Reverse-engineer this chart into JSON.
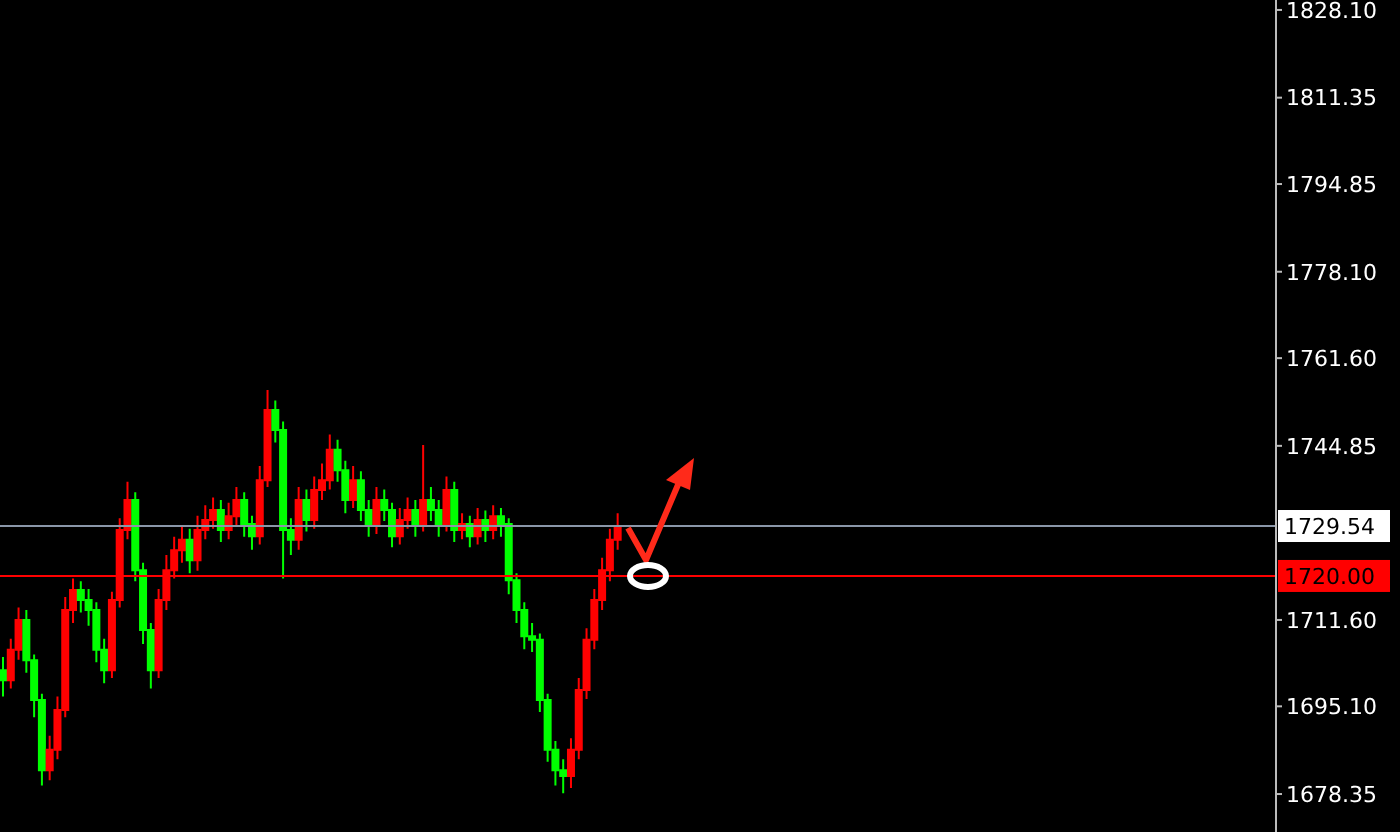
{
  "chart_data": {
    "type": "candlestick",
    "categories": [
      null,
      null,
      null,
      null,
      null,
      null,
      null,
      null,
      null,
      null,
      null,
      null,
      null,
      null,
      null,
      null,
      null,
      null,
      null,
      null,
      null,
      null,
      null,
      null,
      null,
      null,
      null,
      null,
      null,
      null,
      null,
      null,
      null,
      null,
      null,
      null,
      null,
      null,
      null,
      null,
      null,
      null,
      null,
      null,
      null,
      null,
      null,
      null,
      null,
      null,
      null,
      null,
      null,
      null,
      null,
      null,
      null,
      null,
      null,
      null,
      null,
      null,
      null,
      null,
      null,
      null,
      null,
      null,
      null,
      null,
      null,
      null,
      null,
      null,
      null,
      null,
      null,
      null,
      null,
      null,
      null,
      null,
      null,
      null,
      null,
      null,
      null,
      null,
      null,
      null,
      null,
      null,
      null,
      null,
      null,
      null,
      null,
      null,
      null,
      null,
      null,
      null,
      null,
      null,
      null,
      null,
      null,
      null,
      null,
      null,
      null,
      null,
      null,
      null,
      null,
      null,
      null,
      null,
      null,
      null,
      null,
      null,
      null,
      null,
      null,
      null,
      null,
      null,
      null,
      null,
      null,
      null,
      null,
      null,
      null,
      null,
      null,
      null,
      null,
      null,
      null,
      null,
      null,
      null,
      null,
      null,
      null,
      null,
      null,
      null,
      null,
      null,
      null,
      null,
      null,
      null,
      null,
      null,
      null,
      null,
      null,
      null,
      null,
      null
    ],
    "ohlc": [
      [
        1702.0,
        1704.5,
        1697.0,
        1700.1
      ],
      [
        1700.1,
        1708.0,
        1698.5,
        1705.9
      ],
      [
        1705.9,
        1714.0,
        1704.0,
        1711.6
      ],
      [
        1711.6,
        1713.5,
        1701.5,
        1703.9
      ],
      [
        1703.9,
        1705.0,
        1693.0,
        1696.3
      ],
      [
        1696.3,
        1697.5,
        1680.0,
        1682.9
      ],
      [
        1682.9,
        1689.5,
        1681.0,
        1686.8
      ],
      [
        1686.8,
        1697.0,
        1685.0,
        1694.4
      ],
      [
        1694.4,
        1716.0,
        1693.0,
        1713.5
      ],
      [
        1713.5,
        1719.5,
        1711.0,
        1717.3
      ],
      [
        1717.3,
        1719.0,
        1713.0,
        1715.4
      ],
      [
        1715.4,
        1717.5,
        1710.5,
        1713.5
      ],
      [
        1713.5,
        1715.0,
        1703.5,
        1705.9
      ],
      [
        1705.9,
        1708.0,
        1699.5,
        1702.0
      ],
      [
        1702.0,
        1717.0,
        1700.5,
        1715.4
      ],
      [
        1715.4,
        1731.0,
        1714.0,
        1728.8
      ],
      [
        1728.8,
        1738.0,
        1727.0,
        1734.5
      ],
      [
        1734.5,
        1736.0,
        1719.0,
        1721.1
      ],
      [
        1721.1,
        1722.5,
        1707.0,
        1709.7
      ],
      [
        1709.7,
        1711.0,
        1698.5,
        1702.0
      ],
      [
        1702.0,
        1717.5,
        1700.5,
        1715.4
      ],
      [
        1715.4,
        1724.0,
        1713.5,
        1721.1
      ],
      [
        1721.1,
        1727.5,
        1719.5,
        1724.9
      ],
      [
        1724.9,
        1729.5,
        1722.5,
        1726.9
      ],
      [
        1726.9,
        1729.0,
        1720.5,
        1723.0
      ],
      [
        1723.0,
        1731.5,
        1721.0,
        1728.8
      ],
      [
        1728.8,
        1733.5,
        1727.0,
        1730.7
      ],
      [
        1730.7,
        1735.0,
        1729.0,
        1732.6
      ],
      [
        1732.6,
        1734.5,
        1726.5,
        1728.8
      ],
      [
        1728.8,
        1734.0,
        1727.0,
        1731.4
      ],
      [
        1731.4,
        1737.0,
        1729.5,
        1734.5
      ],
      [
        1734.5,
        1736.0,
        1727.5,
        1729.9
      ],
      [
        1729.9,
        1731.5,
        1725.0,
        1727.6
      ],
      [
        1727.6,
        1741.0,
        1726.0,
        1738.3
      ],
      [
        1738.3,
        1755.5,
        1737.0,
        1751.7
      ],
      [
        1751.7,
        1753.5,
        1745.5,
        1747.9
      ],
      [
        1747.9,
        1749.5,
        1719.5,
        1728.8
      ],
      [
        1728.8,
        1731.0,
        1724.0,
        1726.9
      ],
      [
        1726.9,
        1737.0,
        1725.0,
        1734.5
      ],
      [
        1734.5,
        1736.5,
        1728.5,
        1730.7
      ],
      [
        1730.7,
        1739.0,
        1729.0,
        1736.4
      ],
      [
        1736.4,
        1741.5,
        1734.5,
        1738.3
      ],
      [
        1738.3,
        1747.0,
        1736.5,
        1744.1
      ],
      [
        1744.1,
        1746.0,
        1738.0,
        1740.2
      ],
      [
        1740.2,
        1742.0,
        1732.0,
        1734.5
      ],
      [
        1734.5,
        1741.0,
        1733.0,
        1738.3
      ],
      [
        1738.3,
        1740.0,
        1730.5,
        1732.6
      ],
      [
        1732.6,
        1734.5,
        1727.5,
        1729.9
      ],
      [
        1729.9,
        1737.0,
        1728.0,
        1734.5
      ],
      [
        1734.5,
        1736.5,
        1730.5,
        1732.6
      ],
      [
        1732.6,
        1734.0,
        1725.5,
        1727.6
      ],
      [
        1727.6,
        1733.0,
        1726.0,
        1730.7
      ],
      [
        1730.7,
        1735.0,
        1729.0,
        1732.6
      ],
      [
        1732.6,
        1734.5,
        1727.5,
        1729.9
      ],
      [
        1729.9,
        1745.0,
        1728.5,
        1734.5
      ],
      [
        1734.5,
        1737.0,
        1730.5,
        1732.6
      ],
      [
        1732.6,
        1734.5,
        1727.5,
        1729.9
      ],
      [
        1729.9,
        1739.0,
        1728.5,
        1736.4
      ],
      [
        1736.4,
        1738.0,
        1726.5,
        1728.8
      ],
      [
        1728.8,
        1732.0,
        1727.0,
        1729.9
      ],
      [
        1729.9,
        1731.5,
        1725.5,
        1727.6
      ],
      [
        1727.6,
        1733.0,
        1726.0,
        1730.7
      ],
      [
        1730.7,
        1732.5,
        1726.5,
        1728.8
      ],
      [
        1728.8,
        1733.5,
        1727.0,
        1731.4
      ],
      [
        1731.4,
        1733.0,
        1727.5,
        1729.9
      ],
      [
        1729.9,
        1731.0,
        1716.5,
        1719.2
      ],
      [
        1719.2,
        1720.5,
        1711.0,
        1713.5
      ],
      [
        1713.5,
        1715.0,
        1706.0,
        1708.5
      ],
      [
        1708.5,
        1711.0,
        1705.5,
        1707.8
      ],
      [
        1707.8,
        1709.0,
        1694.0,
        1696.3
      ],
      [
        1696.3,
        1697.5,
        1684.5,
        1686.8
      ],
      [
        1686.8,
        1688.5,
        1680.0,
        1682.9
      ],
      [
        1682.9,
        1685.0,
        1678.5,
        1681.8
      ],
      [
        1681.8,
        1689.0,
        1679.5,
        1686.8
      ],
      [
        1686.8,
        1700.5,
        1685.0,
        1698.2
      ],
      [
        1698.2,
        1710.0,
        1696.5,
        1707.8
      ],
      [
        1707.8,
        1717.5,
        1706.0,
        1715.4
      ],
      [
        1715.4,
        1723.5,
        1713.5,
        1721.1
      ],
      [
        1721.1,
        1729.0,
        1719.0,
        1726.9
      ],
      [
        1726.9,
        1732.0,
        1725.0,
        1729.54
      ],
      null,
      null,
      null,
      null,
      null,
      null,
      null,
      null,
      null,
      null,
      null,
      null,
      null,
      null,
      null,
      null,
      null,
      null,
      null,
      null,
      null,
      null,
      null,
      null,
      null,
      null,
      null,
      null,
      null,
      null,
      null,
      null,
      null,
      null,
      null,
      null,
      null,
      null,
      null,
      null,
      null,
      null,
      null,
      null,
      null,
      null,
      null,
      null,
      null,
      null,
      null,
      null,
      null,
      null,
      null,
      null,
      null,
      null,
      null,
      null,
      null,
      null,
      null,
      null,
      null,
      null,
      null,
      null,
      null,
      null,
      null,
      null,
      null,
      null,
      null,
      null,
      null,
      null,
      null,
      null,
      null,
      null,
      null,
      null
    ],
    "colors": [
      "#00ff00",
      "#ff0000",
      "#ff0000",
      "#00ff00",
      "#00ff00",
      "#00ff00",
      "#ff0000",
      "#ff0000",
      "#ff0000",
      "#ff0000",
      "#00ff00",
      "#00ff00",
      "#00ff00",
      "#00ff00",
      "#ff0000",
      "#ff0000",
      "#ff0000",
      "#00ff00",
      "#00ff00",
      "#00ff00",
      "#ff0000",
      "#ff0000",
      "#ff0000",
      "#ff0000",
      "#00ff00",
      "#ff0000",
      "#ff0000",
      "#ff0000",
      "#00ff00",
      "#ff0000",
      "#ff0000",
      "#00ff00",
      "#00ff00",
      "#ff0000",
      "#ff0000",
      "#00ff00",
      "#00ff00",
      "#00ff00",
      "#ff0000",
      "#00ff00",
      "#ff0000",
      "#ff0000",
      "#ff0000",
      "#00ff00",
      "#00ff00",
      "#ff0000",
      "#00ff00",
      "#00ff00",
      "#ff0000",
      "#00ff00",
      "#00ff00",
      "#ff0000",
      "#ff0000",
      "#00ff00",
      "#ff0000",
      "#00ff00",
      "#00ff00",
      "#ff0000",
      "#00ff00",
      "#ff0000",
      "#00ff00",
      "#ff0000",
      "#00ff00",
      "#ff0000",
      "#00ff00",
      "#00ff00",
      "#00ff00",
      "#00ff00",
      "#00ff00",
      "#00ff00",
      "#00ff00",
      "#00ff00",
      "#00ff00",
      "#ff0000",
      "#ff0000",
      "#ff0000",
      "#ff0000",
      "#ff0000",
      "#ff0000",
      "#ff0000",
      null,
      null,
      null,
      null,
      null,
      null,
      null,
      null,
      null,
      null,
      null,
      null,
      null,
      null,
      null,
      null,
      null,
      null,
      null,
      null,
      null,
      null,
      null,
      null,
      null,
      null,
      null,
      null,
      null,
      null,
      null,
      null,
      null,
      null,
      null,
      null,
      null,
      null,
      null,
      null,
      null,
      null,
      null,
      null,
      null,
      null,
      null,
      null,
      null,
      null,
      null,
      null,
      null,
      null,
      null,
      null,
      null,
      null,
      null,
      null,
      null,
      null,
      null,
      null,
      null,
      null,
      null,
      null,
      null,
      null,
      null,
      null,
      null,
      null,
      null,
      null,
      null,
      null,
      null,
      null,
      null,
      null,
      null,
      null
    ],
    "ylim": [
      1671.1,
      1830.0
    ],
    "yticks": [
      {
        "value": 1828.1,
        "label": "1828.10"
      },
      {
        "value": 1811.35,
        "label": "1811.35"
      },
      {
        "value": 1794.85,
        "label": "1794.85"
      },
      {
        "value": 1778.1,
        "label": "1778.10"
      },
      {
        "value": 1761.6,
        "label": "1761.60"
      },
      {
        "value": 1744.85,
        "label": "1744.85"
      },
      {
        "value": 1711.6,
        "label": "1711.60"
      },
      {
        "value": 1695.1,
        "label": "1695.10"
      },
      {
        "value": 1678.35,
        "label": "1678.35"
      }
    ],
    "ref_lines": [
      {
        "axis": "y",
        "value": 1729.54,
        "label": "1729.54",
        "color": "#8a96a8"
      },
      {
        "axis": "y",
        "value": 1720.0,
        "label": "1720.00",
        "color": "#ff0000"
      }
    ],
    "tick_labels": "y"
  }
}
